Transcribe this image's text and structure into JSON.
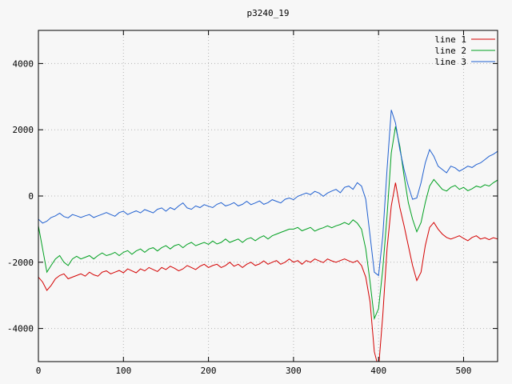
{
  "title": "p3240_19",
  "chart_data": {
    "type": "line",
    "title": "p3240_19",
    "xlabel": "",
    "ylabel": "",
    "xlim": [
      0,
      540
    ],
    "ylim": [
      -5000,
      5000
    ],
    "x_ticks": [
      0,
      100,
      200,
      300,
      400,
      500
    ],
    "y_ticks": [
      -4000,
      -2000,
      0,
      2000,
      4000
    ],
    "grid": true,
    "legend_position": "top-right",
    "x_start": 0,
    "x_step": 5,
    "series": [
      {
        "name": "line 1",
        "color": "#d40000",
        "values": [
          -2450,
          -2600,
          -2850,
          -2700,
          -2500,
          -2400,
          -2350,
          -2500,
          -2450,
          -2400,
          -2350,
          -2420,
          -2300,
          -2380,
          -2420,
          -2300,
          -2260,
          -2350,
          -2300,
          -2250,
          -2320,
          -2200,
          -2260,
          -2320,
          -2200,
          -2260,
          -2160,
          -2220,
          -2280,
          -2160,
          -2220,
          -2120,
          -2180,
          -2260,
          -2200,
          -2100,
          -2160,
          -2220,
          -2120,
          -2060,
          -2160,
          -2100,
          -2060,
          -2160,
          -2100,
          -2000,
          -2120,
          -2060,
          -2160,
          -2060,
          -2000,
          -2100,
          -2050,
          -1960,
          -2060,
          -2000,
          -1950,
          -2060,
          -2000,
          -1900,
          -2000,
          -1950,
          -2060,
          -1950,
          -2000,
          -1900,
          -1960,
          -2010,
          -1900,
          -1960,
          -2000,
          -1950,
          -1900,
          -1960,
          -2010,
          -1950,
          -2100,
          -2450,
          -3200,
          -4700,
          -5200,
          -3600,
          -1600,
          -300,
          400,
          -350,
          -900,
          -1500,
          -2100,
          -2550,
          -2300,
          -1500,
          -950,
          -800,
          -1000,
          -1150,
          -1250,
          -1300,
          -1250,
          -1200,
          -1280,
          -1350,
          -1250,
          -1200,
          -1300,
          -1260,
          -1320,
          -1260,
          -1300
        ]
      },
      {
        "name": "line 2",
        "color": "#00a020",
        "values": [
          -900,
          -1600,
          -2300,
          -2100,
          -1900,
          -1800,
          -2000,
          -2100,
          -1900,
          -1820,
          -1900,
          -1850,
          -1800,
          -1900,
          -1800,
          -1720,
          -1800,
          -1760,
          -1700,
          -1800,
          -1700,
          -1650,
          -1760,
          -1660,
          -1600,
          -1700,
          -1600,
          -1560,
          -1660,
          -1560,
          -1500,
          -1600,
          -1500,
          -1460,
          -1560,
          -1460,
          -1400,
          -1500,
          -1450,
          -1400,
          -1460,
          -1360,
          -1450,
          -1400,
          -1300,
          -1400,
          -1350,
          -1300,
          -1400,
          -1300,
          -1260,
          -1350,
          -1260,
          -1200,
          -1300,
          -1200,
          -1150,
          -1100,
          -1050,
          -1000,
          -1000,
          -950,
          -1050,
          -1000,
          -950,
          -1060,
          -1000,
          -960,
          -900,
          -960,
          -900,
          -860,
          -800,
          -860,
          -720,
          -820,
          -1000,
          -1600,
          -2600,
          -3700,
          -3400,
          -2200,
          -600,
          1300,
          2100,
          1500,
          600,
          -200,
          -700,
          -1080,
          -800,
          -200,
          300,
          500,
          350,
          200,
          150,
          260,
          320,
          200,
          260,
          160,
          220,
          300,
          260,
          340,
          300,
          400,
          480
        ]
      },
      {
        "name": "line 3",
        "color": "#2060d0",
        "values": [
          -700,
          -820,
          -760,
          -650,
          -600,
          -520,
          -620,
          -660,
          -560,
          -600,
          -650,
          -600,
          -560,
          -650,
          -600,
          -550,
          -500,
          -560,
          -610,
          -500,
          -460,
          -560,
          -500,
          -450,
          -510,
          -410,
          -460,
          -510,
          -400,
          -360,
          -460,
          -350,
          -410,
          -300,
          -210,
          -360,
          -400,
          -300,
          -350,
          -260,
          -310,
          -350,
          -250,
          -200,
          -300,
          -260,
          -200,
          -300,
          -250,
          -160,
          -260,
          -210,
          -150,
          -250,
          -200,
          -110,
          -160,
          -210,
          -100,
          -60,
          -110,
          -10,
          40,
          90,
          40,
          140,
          90,
          -10,
          90,
          150,
          200,
          100,
          260,
          300,
          200,
          400,
          300,
          -100,
          -1200,
          -2300,
          -2400,
          -1200,
          800,
          2600,
          2200,
          1400,
          800,
          300,
          -100,
          -60,
          400,
          1000,
          1400,
          1200,
          900,
          800,
          700,
          900,
          850,
          750,
          820,
          900,
          860,
          950,
          1000,
          1100,
          1200,
          1260,
          1350
        ]
      }
    ]
  }
}
